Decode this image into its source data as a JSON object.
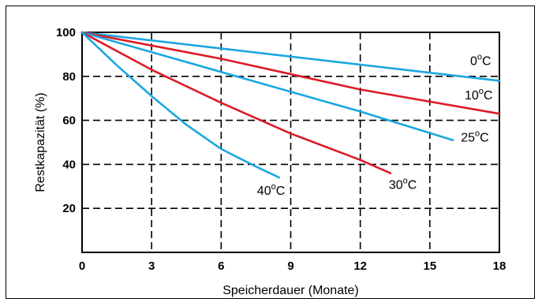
{
  "chart_data": {
    "type": "line",
    "title": "",
    "xlabel": "Speicherdauer (Monate)",
    "ylabel": "Restkapazität (%)",
    "xlim": [
      0,
      18
    ],
    "ylim": [
      0,
      100
    ],
    "x_ticks": [
      0,
      3,
      6,
      9,
      12,
      15,
      18
    ],
    "x_tick_labels": [
      "0",
      "3",
      "6",
      "9",
      "12",
      "15",
      "18"
    ],
    "y_ticks": [
      20,
      40,
      60,
      80,
      100
    ],
    "y_tick_labels": [
      "20",
      "40",
      "60",
      "80",
      "100"
    ],
    "grid": true,
    "grid_style": "dashed",
    "legend": "none",
    "series": [
      {
        "name": "0°C",
        "label_parts": {
          "number": "0",
          "degree": "o",
          "unit": "C"
        },
        "color": "#1aa7e0",
        "points": [
          [
            0,
            100
          ],
          [
            18,
            78
          ]
        ]
      },
      {
        "name": "10°C",
        "label_parts": {
          "number": "10",
          "degree": "o",
          "unit": "C"
        },
        "color": "#dc1c28",
        "points": [
          [
            0,
            100
          ],
          [
            6,
            88
          ],
          [
            12,
            74
          ],
          [
            18,
            63
          ]
        ]
      },
      {
        "name": "25°C",
        "label_parts": {
          "number": "25",
          "degree": "o",
          "unit": "C"
        },
        "color": "#1aa7e0",
        "points": [
          [
            0,
            100
          ],
          [
            4,
            88
          ],
          [
            8,
            76
          ],
          [
            12,
            64
          ],
          [
            16,
            51
          ]
        ]
      },
      {
        "name": "30°C",
        "label_parts": {
          "number": "30",
          "degree": "o",
          "unit": "C"
        },
        "color": "#dc1c28",
        "points": [
          [
            0,
            100
          ],
          [
            3,
            83
          ],
          [
            6,
            68
          ],
          [
            9,
            54
          ],
          [
            12,
            42
          ],
          [
            13.3,
            36
          ]
        ]
      },
      {
        "name": "40°C",
        "label_parts": {
          "number": "40",
          "degree": "o",
          "unit": "C"
        },
        "color": "#1aa7e0",
        "points": [
          [
            0,
            100
          ],
          [
            1.5,
            85
          ],
          [
            3,
            71
          ],
          [
            4.5,
            58
          ],
          [
            6,
            47
          ],
          [
            7.5,
            39
          ],
          [
            8.5,
            34
          ]
        ]
      }
    ]
  }
}
